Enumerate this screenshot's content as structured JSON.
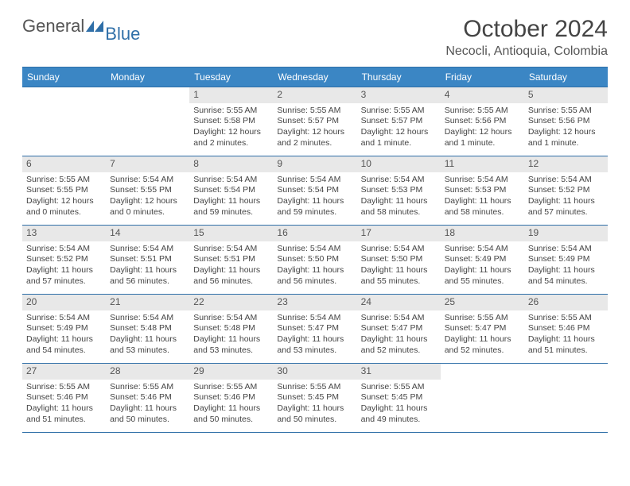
{
  "logo": {
    "part1": "General",
    "part2": "Blue"
  },
  "title": "October 2024",
  "location": "Necocli, Antioquia, Colombia",
  "colors": {
    "header_bg": "#3b86c4",
    "header_border": "#2f6fa8",
    "cell_border": "#2f6fa8",
    "daynum_bg": "#e8e8e8",
    "text": "#444"
  },
  "weekdays": [
    "Sunday",
    "Monday",
    "Tuesday",
    "Wednesday",
    "Thursday",
    "Friday",
    "Saturday"
  ],
  "weeks": [
    [
      null,
      null,
      {
        "n": "1",
        "sr": "5:55 AM",
        "ss": "5:58 PM",
        "dl": "12 hours and 2 minutes."
      },
      {
        "n": "2",
        "sr": "5:55 AM",
        "ss": "5:57 PM",
        "dl": "12 hours and 2 minutes."
      },
      {
        "n": "3",
        "sr": "5:55 AM",
        "ss": "5:57 PM",
        "dl": "12 hours and 1 minute."
      },
      {
        "n": "4",
        "sr": "5:55 AM",
        "ss": "5:56 PM",
        "dl": "12 hours and 1 minute."
      },
      {
        "n": "5",
        "sr": "5:55 AM",
        "ss": "5:56 PM",
        "dl": "12 hours and 1 minute."
      }
    ],
    [
      {
        "n": "6",
        "sr": "5:55 AM",
        "ss": "5:55 PM",
        "dl": "12 hours and 0 minutes."
      },
      {
        "n": "7",
        "sr": "5:54 AM",
        "ss": "5:55 PM",
        "dl": "12 hours and 0 minutes."
      },
      {
        "n": "8",
        "sr": "5:54 AM",
        "ss": "5:54 PM",
        "dl": "11 hours and 59 minutes."
      },
      {
        "n": "9",
        "sr": "5:54 AM",
        "ss": "5:54 PM",
        "dl": "11 hours and 59 minutes."
      },
      {
        "n": "10",
        "sr": "5:54 AM",
        "ss": "5:53 PM",
        "dl": "11 hours and 58 minutes."
      },
      {
        "n": "11",
        "sr": "5:54 AM",
        "ss": "5:53 PM",
        "dl": "11 hours and 58 minutes."
      },
      {
        "n": "12",
        "sr": "5:54 AM",
        "ss": "5:52 PM",
        "dl": "11 hours and 57 minutes."
      }
    ],
    [
      {
        "n": "13",
        "sr": "5:54 AM",
        "ss": "5:52 PM",
        "dl": "11 hours and 57 minutes."
      },
      {
        "n": "14",
        "sr": "5:54 AM",
        "ss": "5:51 PM",
        "dl": "11 hours and 56 minutes."
      },
      {
        "n": "15",
        "sr": "5:54 AM",
        "ss": "5:51 PM",
        "dl": "11 hours and 56 minutes."
      },
      {
        "n": "16",
        "sr": "5:54 AM",
        "ss": "5:50 PM",
        "dl": "11 hours and 56 minutes."
      },
      {
        "n": "17",
        "sr": "5:54 AM",
        "ss": "5:50 PM",
        "dl": "11 hours and 55 minutes."
      },
      {
        "n": "18",
        "sr": "5:54 AM",
        "ss": "5:49 PM",
        "dl": "11 hours and 55 minutes."
      },
      {
        "n": "19",
        "sr": "5:54 AM",
        "ss": "5:49 PM",
        "dl": "11 hours and 54 minutes."
      }
    ],
    [
      {
        "n": "20",
        "sr": "5:54 AM",
        "ss": "5:49 PM",
        "dl": "11 hours and 54 minutes."
      },
      {
        "n": "21",
        "sr": "5:54 AM",
        "ss": "5:48 PM",
        "dl": "11 hours and 53 minutes."
      },
      {
        "n": "22",
        "sr": "5:54 AM",
        "ss": "5:48 PM",
        "dl": "11 hours and 53 minutes."
      },
      {
        "n": "23",
        "sr": "5:54 AM",
        "ss": "5:47 PM",
        "dl": "11 hours and 53 minutes."
      },
      {
        "n": "24",
        "sr": "5:54 AM",
        "ss": "5:47 PM",
        "dl": "11 hours and 52 minutes."
      },
      {
        "n": "25",
        "sr": "5:55 AM",
        "ss": "5:47 PM",
        "dl": "11 hours and 52 minutes."
      },
      {
        "n": "26",
        "sr": "5:55 AM",
        "ss": "5:46 PM",
        "dl": "11 hours and 51 minutes."
      }
    ],
    [
      {
        "n": "27",
        "sr": "5:55 AM",
        "ss": "5:46 PM",
        "dl": "11 hours and 51 minutes."
      },
      {
        "n": "28",
        "sr": "5:55 AM",
        "ss": "5:46 PM",
        "dl": "11 hours and 50 minutes."
      },
      {
        "n": "29",
        "sr": "5:55 AM",
        "ss": "5:46 PM",
        "dl": "11 hours and 50 minutes."
      },
      {
        "n": "30",
        "sr": "5:55 AM",
        "ss": "5:45 PM",
        "dl": "11 hours and 50 minutes."
      },
      {
        "n": "31",
        "sr": "5:55 AM",
        "ss": "5:45 PM",
        "dl": "11 hours and 49 minutes."
      },
      null,
      null
    ]
  ],
  "labels": {
    "sunrise": "Sunrise:",
    "sunset": "Sunset:",
    "daylight": "Daylight:"
  }
}
